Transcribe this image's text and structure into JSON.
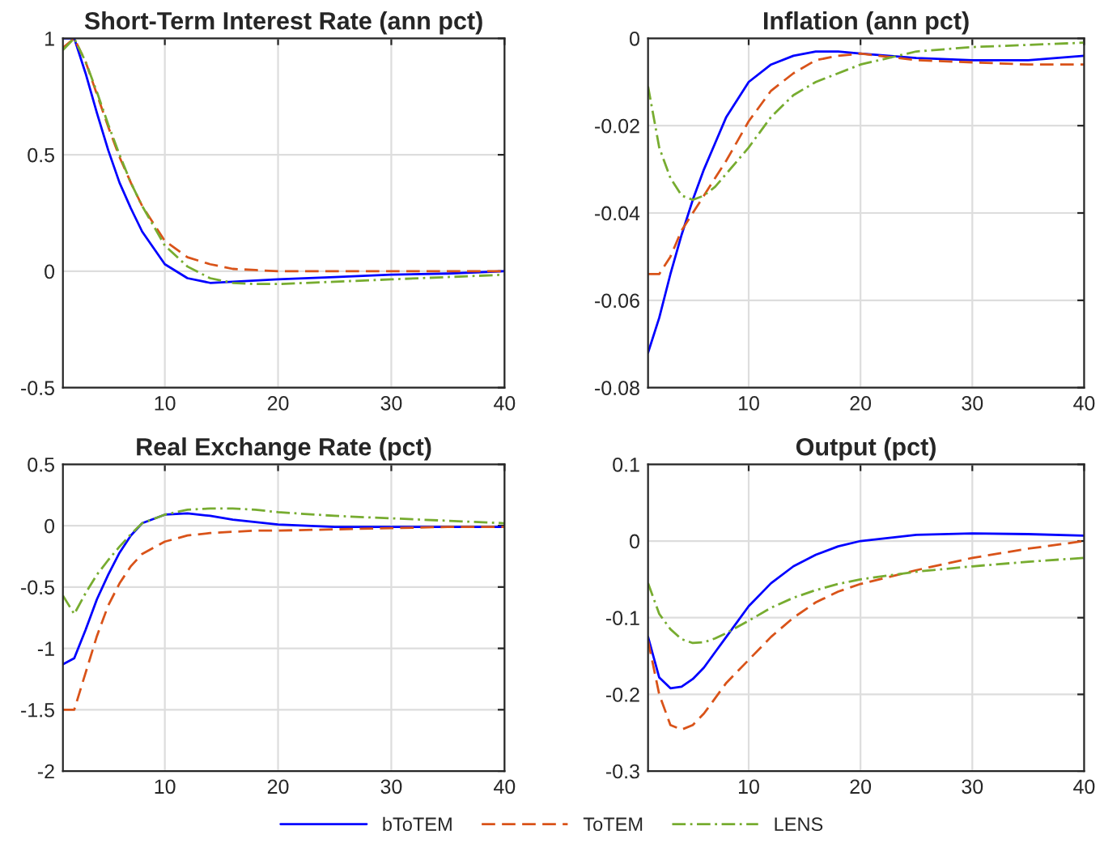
{
  "chart_data": [
    {
      "type": "line",
      "title": "Short-Term Interest Rate (ann pct)",
      "x": [
        1,
        2,
        3,
        4,
        5,
        6,
        7,
        8,
        10,
        12,
        14,
        16,
        18,
        20,
        25,
        30,
        35,
        40
      ],
      "xlim": [
        1,
        40
      ],
      "xticks": [
        10,
        20,
        30,
        40
      ],
      "ylim": [
        -0.5,
        1
      ],
      "yticks": [
        -0.5,
        0,
        0.5,
        1
      ],
      "grid": true,
      "legend": "bottom",
      "series": [
        {
          "name": "bToTEM",
          "color": "#0000ff",
          "line_style": "solid",
          "values": [
            1.0,
            1.0,
            0.85,
            0.68,
            0.52,
            0.38,
            0.27,
            0.17,
            0.03,
            -0.03,
            -0.05,
            -0.045,
            -0.04,
            -0.035,
            -0.025,
            -0.015,
            -0.01,
            0
          ]
        },
        {
          "name": "ToTEM",
          "color": "#d95319",
          "line_style": "dashed",
          "values": [
            0.96,
            1.0,
            0.9,
            0.76,
            0.62,
            0.49,
            0.38,
            0.28,
            0.13,
            0.06,
            0.03,
            0.01,
            0.005,
            0,
            0,
            0,
            0,
            0
          ]
        },
        {
          "name": "LENS",
          "color": "#77ac30",
          "line_style": "dashdot",
          "values": [
            0.95,
            1.0,
            0.9,
            0.77,
            0.63,
            0.5,
            0.38,
            0.28,
            0.11,
            0.02,
            -0.03,
            -0.05,
            -0.055,
            -0.055,
            -0.045,
            -0.035,
            -0.025,
            -0.015
          ]
        }
      ]
    },
    {
      "type": "line",
      "title": "Inflation (ann pct)",
      "x": [
        1,
        2,
        3,
        4,
        5,
        6,
        7,
        8,
        10,
        12,
        14,
        16,
        18,
        20,
        25,
        30,
        35,
        40
      ],
      "xlim": [
        1,
        40
      ],
      "xticks": [
        10,
        20,
        30,
        40
      ],
      "ylim": [
        -0.08,
        0
      ],
      "yticks": [
        -0.08,
        -0.06,
        -0.04,
        -0.02,
        0
      ],
      "grid": true,
      "series": [
        {
          "color": "#0000ff",
          "line_style": "solid",
          "values": [
            -0.072,
            -0.064,
            -0.054,
            -0.045,
            -0.037,
            -0.03,
            -0.024,
            -0.018,
            -0.01,
            -0.006,
            -0.004,
            -0.003,
            -0.003,
            -0.0035,
            -0.0045,
            -0.005,
            -0.005,
            -0.004
          ]
        },
        {
          "color": "#d95319",
          "line_style": "dashed",
          "values": [
            -0.054,
            -0.054,
            -0.05,
            -0.044,
            -0.04,
            -0.036,
            -0.032,
            -0.028,
            -0.019,
            -0.012,
            -0.008,
            -0.005,
            -0.004,
            -0.0035,
            -0.005,
            -0.0055,
            -0.006,
            -0.006
          ]
        },
        {
          "color": "#77ac30",
          "line_style": "dashdot",
          "values": [
            -0.011,
            -0.025,
            -0.032,
            -0.036,
            -0.037,
            -0.036,
            -0.034,
            -0.031,
            -0.025,
            -0.018,
            -0.013,
            -0.01,
            -0.008,
            -0.006,
            -0.003,
            -0.002,
            -0.0015,
            -0.001
          ]
        }
      ]
    },
    {
      "type": "line",
      "title": "Real Exchange Rate (pct)",
      "x": [
        1,
        2,
        3,
        4,
        5,
        6,
        7,
        8,
        10,
        12,
        14,
        16,
        18,
        20,
        25,
        30,
        35,
        40
      ],
      "xlim": [
        1,
        40
      ],
      "xticks": [
        10,
        20,
        30,
        40
      ],
      "ylim": [
        -2,
        0.5
      ],
      "yticks": [
        -2,
        -1.5,
        -1,
        -0.5,
        0,
        0.5
      ],
      "grid": true,
      "series": [
        {
          "color": "#0000ff",
          "line_style": "solid",
          "values": [
            -1.13,
            -1.08,
            -0.85,
            -0.6,
            -0.4,
            -0.22,
            -0.08,
            0.02,
            0.09,
            0.1,
            0.08,
            0.05,
            0.03,
            0.01,
            -0.01,
            -0.01,
            -0.01,
            -0.01
          ]
        },
        {
          "color": "#d95319",
          "line_style": "dashed",
          "values": [
            -1.5,
            -1.5,
            -1.2,
            -0.9,
            -0.65,
            -0.47,
            -0.33,
            -0.23,
            -0.13,
            -0.08,
            -0.06,
            -0.05,
            -0.04,
            -0.04,
            -0.03,
            -0.02,
            -0.01,
            -0.01
          ]
        },
        {
          "color": "#77ac30",
          "line_style": "dashdot",
          "values": [
            -0.57,
            -0.72,
            -0.55,
            -0.4,
            -0.28,
            -0.17,
            -0.07,
            0.02,
            0.09,
            0.13,
            0.14,
            0.14,
            0.13,
            0.11,
            0.08,
            0.06,
            0.04,
            0.02
          ]
        }
      ]
    },
    {
      "type": "line",
      "title": "Output (pct)",
      "x": [
        1,
        2,
        3,
        4,
        5,
        6,
        7,
        8,
        10,
        12,
        14,
        16,
        18,
        20,
        25,
        30,
        35,
        40
      ],
      "xlim": [
        1,
        40
      ],
      "xticks": [
        10,
        20,
        30,
        40
      ],
      "ylim": [
        -0.3,
        0.1
      ],
      "yticks": [
        -0.3,
        -0.2,
        -0.1,
        0,
        0.1
      ],
      "grid": true,
      "series": [
        {
          "color": "#0000ff",
          "line_style": "solid",
          "values": [
            -0.125,
            -0.178,
            -0.192,
            -0.19,
            -0.18,
            -0.165,
            -0.145,
            -0.125,
            -0.085,
            -0.055,
            -0.033,
            -0.018,
            -0.007,
            0.0,
            0.008,
            0.01,
            0.009,
            0.007
          ]
        },
        {
          "color": "#d95319",
          "line_style": "dashed",
          "values": [
            -0.13,
            -0.2,
            -0.24,
            -0.246,
            -0.24,
            -0.225,
            -0.205,
            -0.185,
            -0.155,
            -0.125,
            -0.1,
            -0.08,
            -0.066,
            -0.056,
            -0.038,
            -0.022,
            -0.01,
            0.0
          ]
        },
        {
          "color": "#77ac30",
          "line_style": "dashdot",
          "values": [
            -0.055,
            -0.095,
            -0.115,
            -0.128,
            -0.133,
            -0.132,
            -0.127,
            -0.12,
            -0.104,
            -0.087,
            -0.074,
            -0.064,
            -0.056,
            -0.05,
            -0.04,
            -0.033,
            -0.027,
            -0.022
          ]
        }
      ]
    }
  ]
}
